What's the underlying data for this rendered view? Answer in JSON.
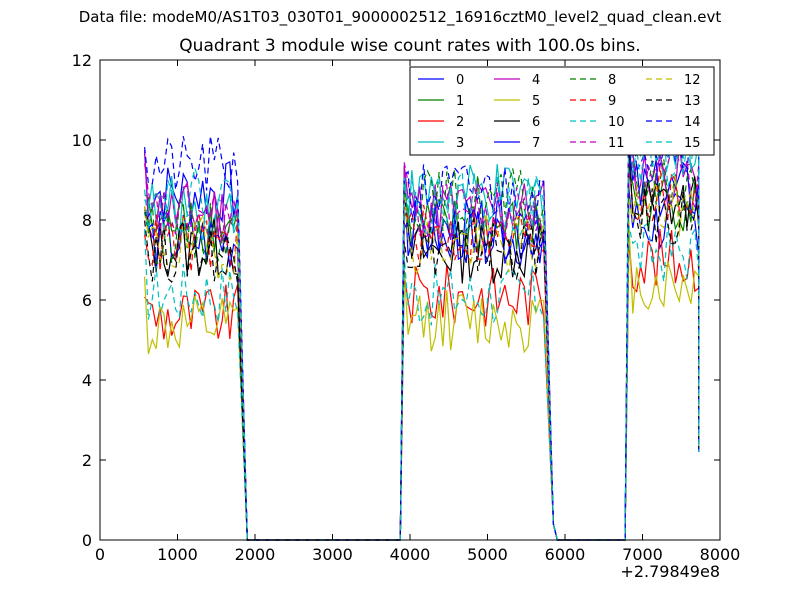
{
  "figure": {
    "suptitle": "Data file: modeM0/AS1T03_030T01_9000002512_16916cztM0_level2_quad_clean.evt",
    "x_offset_label": "+2.79849e8"
  },
  "chart_data": {
    "type": "line",
    "title": "Quadrant 3 module wise count rates with 100.0s bins.",
    "xlabel": "",
    "ylabel": "",
    "xlim": [
      0,
      8000
    ],
    "ylim": [
      0,
      12
    ],
    "xticks": [
      "0",
      "1000",
      "2000",
      "3000",
      "4000",
      "5000",
      "6000",
      "7000",
      "8000"
    ],
    "yticks": [
      "0",
      "2",
      "4",
      "6",
      "8",
      "10",
      "12"
    ],
    "grid": false,
    "legend_location": "top-right",
    "x_offset": "+2.79849e8",
    "segments": [
      {
        "x_start": 575,
        "x_end": 1775,
        "drop_to": 1900
      },
      {
        "x_start": 3925,
        "x_end": 5725,
        "drop_to": 5850
      },
      {
        "x_start": 6825,
        "x_end": 7725,
        "drop_to": 7725
      }
    ],
    "series": [
      {
        "name": "0",
        "color": "#0000ff",
        "dash": "solid",
        "level": [
          8.7,
          7.6,
          7.9
        ]
      },
      {
        "name": "1",
        "color": "#008000",
        "dash": "solid",
        "level": [
          7.9,
          7.8,
          8.5
        ]
      },
      {
        "name": "2",
        "color": "#ff0000",
        "dash": "solid",
        "level": [
          5.6,
          6.1,
          7.0
        ]
      },
      {
        "name": "3",
        "color": "#00bfbf",
        "dash": "solid",
        "level": [
          8.3,
          8.6,
          9.8
        ]
      },
      {
        "name": "4",
        "color": "#bf00bf",
        "dash": "solid",
        "level": [
          8.2,
          8.3,
          9.1
        ]
      },
      {
        "name": "5",
        "color": "#bfbf00",
        "dash": "solid",
        "level": [
          5.3,
          5.5,
          6.4
        ]
      },
      {
        "name": "6",
        "color": "#000000",
        "dash": "solid",
        "level": [
          7.3,
          7.2,
          8.4
        ]
      },
      {
        "name": "7",
        "color": "#0000ff",
        "dash": "solid",
        "level": [
          7.5,
          7.7,
          8.7
        ]
      },
      {
        "name": "8",
        "color": "#008000",
        "dash": "dashed",
        "level": [
          7.7,
          8.5,
          8.9
        ]
      },
      {
        "name": "9",
        "color": "#ff0000",
        "dash": "dashed",
        "level": [
          7.4,
          7.6,
          8.6
        ]
      },
      {
        "name": "10",
        "color": "#00bfbf",
        "dash": "dashed",
        "level": [
          6.2,
          6.1,
          7.2
        ]
      },
      {
        "name": "11",
        "color": "#bf00bf",
        "dash": "dashed",
        "level": [
          8.1,
          8.2,
          9.0
        ]
      },
      {
        "name": "12",
        "color": "#bfbf00",
        "dash": "dashed",
        "level": [
          7.3,
          7.4,
          8.3
        ]
      },
      {
        "name": "13",
        "color": "#000000",
        "dash": "dashed",
        "level": [
          7.2,
          7.3,
          8.1
        ]
      },
      {
        "name": "14",
        "color": "#0000ff",
        "dash": "dashed",
        "level": [
          9.3,
          8.7,
          10.0
        ]
      },
      {
        "name": "15",
        "color": "#00bfbf",
        "dash": "dashed",
        "level": [
          8.5,
          8.4,
          9.6
        ]
      }
    ]
  }
}
